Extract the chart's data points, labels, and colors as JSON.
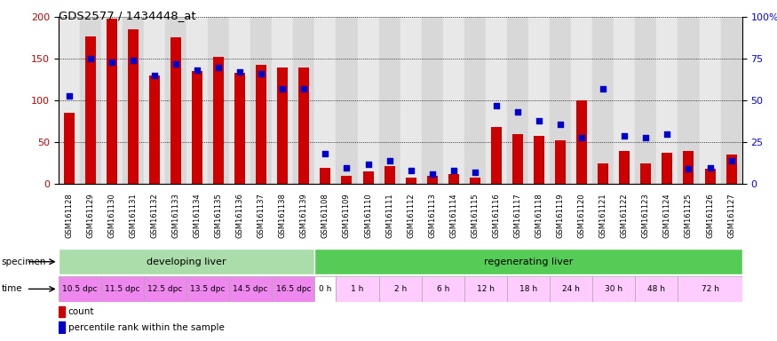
{
  "title": "GDS2577 / 1434448_at",
  "samples": [
    "GSM161128",
    "GSM161129",
    "GSM161130",
    "GSM161131",
    "GSM161132",
    "GSM161133",
    "GSM161134",
    "GSM161135",
    "GSM161136",
    "GSM161137",
    "GSM161138",
    "GSM161139",
    "GSM161108",
    "GSM161109",
    "GSM161110",
    "GSM161111",
    "GSM161112",
    "GSM161113",
    "GSM161114",
    "GSM161115",
    "GSM161116",
    "GSM161117",
    "GSM161118",
    "GSM161119",
    "GSM161120",
    "GSM161121",
    "GSM161122",
    "GSM161123",
    "GSM161124",
    "GSM161125",
    "GSM161126",
    "GSM161127"
  ],
  "counts": [
    85,
    177,
    198,
    185,
    130,
    176,
    135,
    152,
    133,
    143,
    140,
    140,
    20,
    10,
    15,
    22,
    8,
    10,
    12,
    8,
    68,
    60,
    58,
    52,
    100,
    25,
    40,
    25,
    38,
    40,
    18,
    35
  ],
  "percentiles": [
    53,
    75,
    73,
    74,
    65,
    72,
    68,
    70,
    67,
    66,
    57,
    57,
    18,
    10,
    12,
    14,
    8,
    6,
    8,
    7,
    47,
    43,
    38,
    36,
    28,
    57,
    29,
    28,
    30,
    9,
    10,
    14
  ],
  "specimen_groups": [
    {
      "label": "developing liver",
      "start": 0,
      "end": 12,
      "color": "#aaddaa"
    },
    {
      "label": "regenerating liver",
      "start": 12,
      "end": 32,
      "color": "#55cc55"
    }
  ],
  "time_groups": [
    {
      "label": "10.5 dpc",
      "start": 0,
      "end": 2,
      "color": "#ee88ee"
    },
    {
      "label": "11.5 dpc",
      "start": 2,
      "end": 4,
      "color": "#ee88ee"
    },
    {
      "label": "12.5 dpc",
      "start": 4,
      "end": 6,
      "color": "#ee88ee"
    },
    {
      "label": "13.5 dpc",
      "start": 6,
      "end": 8,
      "color": "#ee88ee"
    },
    {
      "label": "14.5 dpc",
      "start": 8,
      "end": 10,
      "color": "#ee88ee"
    },
    {
      "label": "16.5 dpc",
      "start": 10,
      "end": 12,
      "color": "#ee88ee"
    },
    {
      "label": "0 h",
      "start": 12,
      "end": 13,
      "color": "#ffffff"
    },
    {
      "label": "1 h",
      "start": 13,
      "end": 15,
      "color": "#ffccff"
    },
    {
      "label": "2 h",
      "start": 15,
      "end": 17,
      "color": "#ffccff"
    },
    {
      "label": "6 h",
      "start": 17,
      "end": 19,
      "color": "#ffccff"
    },
    {
      "label": "12 h",
      "start": 19,
      "end": 21,
      "color": "#ffccff"
    },
    {
      "label": "18 h",
      "start": 21,
      "end": 23,
      "color": "#ffccff"
    },
    {
      "label": "24 h",
      "start": 23,
      "end": 25,
      "color": "#ffccff"
    },
    {
      "label": "30 h",
      "start": 25,
      "end": 27,
      "color": "#ffccff"
    },
    {
      "label": "48 h",
      "start": 27,
      "end": 29,
      "color": "#ffccff"
    },
    {
      "label": "72 h",
      "start": 29,
      "end": 32,
      "color": "#ffccff"
    }
  ],
  "bar_color": "#CC0000",
  "dot_color": "#0000CC",
  "ylim_left": [
    0,
    200
  ],
  "ylim_right": [
    0,
    100
  ],
  "yticks_left": [
    0,
    50,
    100,
    150,
    200
  ],
  "yticks_right": [
    0,
    25,
    50,
    75,
    100
  ],
  "yticklabels_right": [
    "0",
    "25",
    "50",
    "75",
    "100%"
  ]
}
